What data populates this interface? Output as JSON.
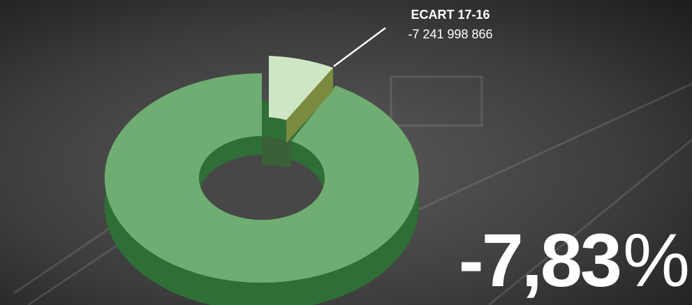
{
  "callout": {
    "label": "ECART 17-16",
    "value": "-7 241 998 866"
  },
  "headline": {
    "number": "-7,83",
    "unit": "%"
  }
}
